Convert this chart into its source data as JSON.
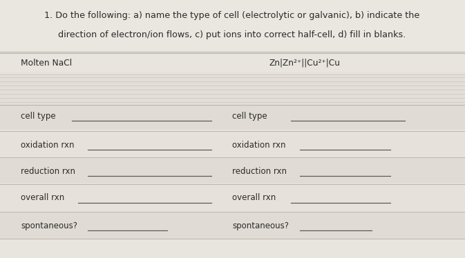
{
  "bg_color": "#e8e4de",
  "title_bg": "#eae6e0",
  "stripe_dark": "#d8d4cc",
  "stripe_light": "#e4e0d8",
  "title_line1": "1. Do the following: a) name the type of cell (electrolytic or galvanic), b) indicate the",
  "title_line2": "direction of electron/ion flows, c) put ions into correct half-cell, d) fill in blanks.",
  "left_header": "Molten NaCl",
  "right_header": "Zn|Zn²⁺||Cu²⁺|Cu",
  "text_color": "#2a2a2a",
  "underline_color": "#555555",
  "separator_color": "#b8b4ae",
  "rows": [
    {
      "left": "cell type",
      "right": "cell type",
      "ll": 0.155,
      "le": 0.455,
      "rl": 0.625,
      "re": 0.87
    },
    {
      "left": "oxidation rxn",
      "right": "oxidation rxn",
      "ll": 0.188,
      "le": 0.455,
      "rl": 0.645,
      "re": 0.84
    },
    {
      "left": "reduction rxn",
      "right": "reduction rxn",
      "ll": 0.188,
      "le": 0.455,
      "rl": 0.645,
      "re": 0.84
    },
    {
      "left": "overall rxn",
      "right": "overall rxn",
      "ll": 0.168,
      "le": 0.455,
      "rl": 0.625,
      "re": 0.84
    },
    {
      "left": "spontaneous?",
      "right": "spontaneous?",
      "ll": 0.188,
      "le": 0.36,
      "rl": 0.645,
      "re": 0.8
    }
  ],
  "title_fontsize": 9.2,
  "label_fontsize": 8.5,
  "header_fontsize": 8.8
}
